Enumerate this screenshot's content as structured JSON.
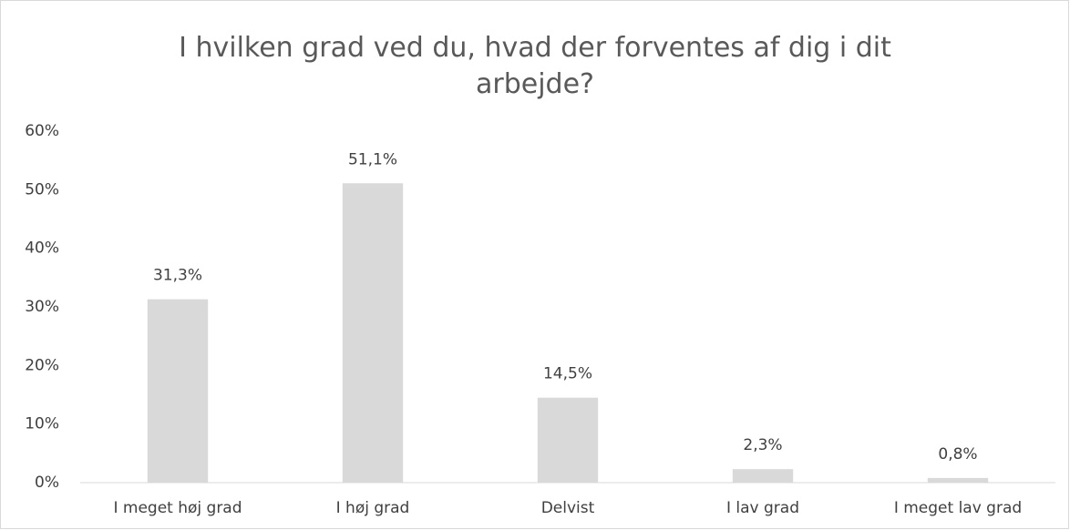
{
  "chart_data": {
    "type": "bar",
    "title": "I hvilken grad ved du, hvad der forventes af dig i dit arbejde?",
    "categories": [
      "I meget høj grad",
      "I høj grad",
      "Delvist",
      "I lav grad",
      "I meget lav grad"
    ],
    "values": [
      31.3,
      51.1,
      14.5,
      2.3,
      0.8
    ],
    "value_labels": [
      "31,3%",
      "51,1%",
      "14,5%",
      "2,3%",
      "0,8%"
    ],
    "color": "#d9d9d9",
    "ylim": [
      0,
      60
    ],
    "yticks": [
      {
        "value": 0,
        "label": "0%"
      },
      {
        "value": 10,
        "label": "10%"
      },
      {
        "value": 20,
        "label": "20%"
      },
      {
        "value": 30,
        "label": "30%"
      },
      {
        "value": 40,
        "label": "40%"
      },
      {
        "value": 50,
        "label": "50%"
      },
      {
        "value": 60,
        "label": "60%"
      }
    ],
    "grid": false
  }
}
